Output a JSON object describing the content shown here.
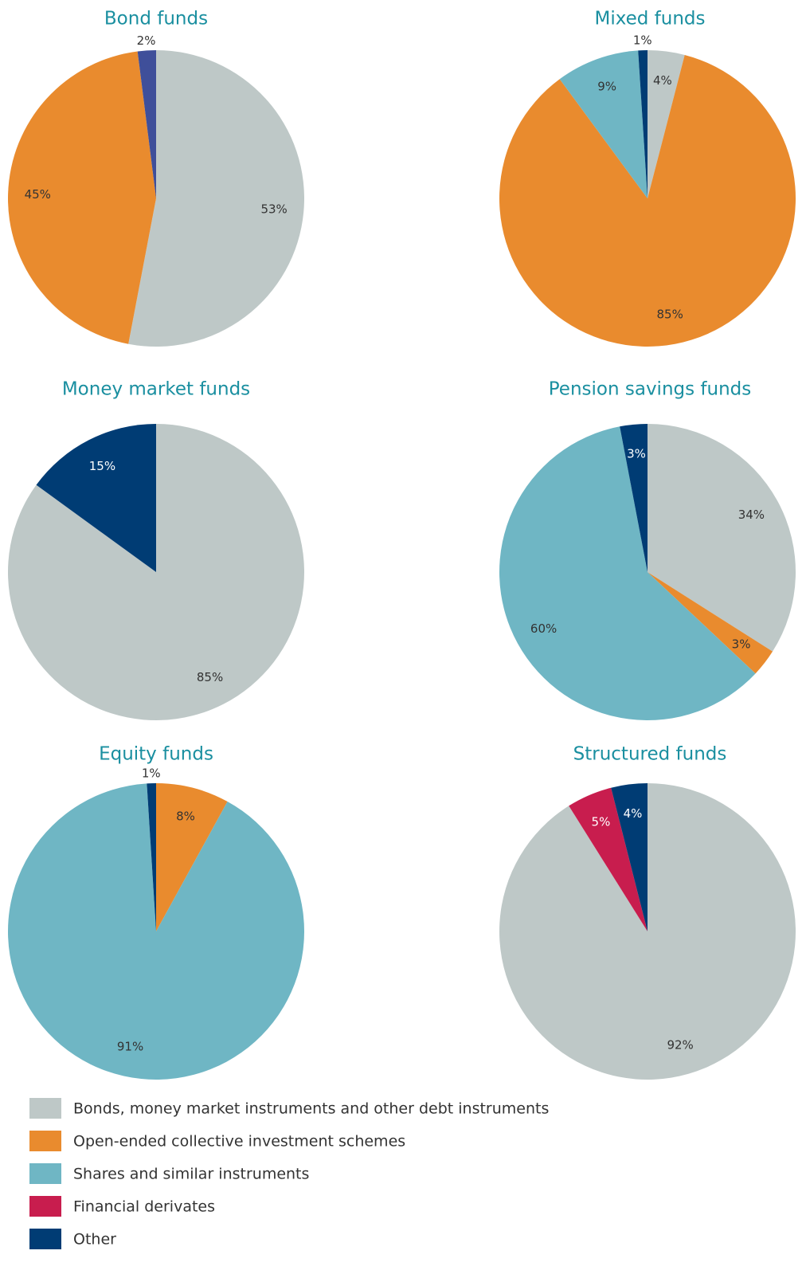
{
  "chart_data": [
    {
      "type": "pie",
      "title": "Bond funds",
      "categories": [
        "Bonds, money market instruments and other debt instruments",
        "Open-ended collective investment schemes",
        "Other"
      ],
      "values": [
        53,
        45,
        2
      ],
      "value_labels": [
        "53%",
        "45%",
        "2%"
      ],
      "colors": [
        "#bec8c7",
        "#e98b2e",
        "#3f4f9a"
      ]
    },
    {
      "type": "pie",
      "title": "Mixed funds",
      "categories": [
        "Bonds, money market instruments and other debt instruments",
        "Open-ended collective investment schemes",
        "Shares and similar instruments",
        "Other"
      ],
      "values": [
        4,
        85,
        9,
        1
      ],
      "value_labels": [
        "4%",
        "85%",
        "9%",
        "1%"
      ],
      "colors": [
        "#bec8c7",
        "#e98b2e",
        "#6fb6c4",
        "#003c74"
      ]
    },
    {
      "type": "pie",
      "title": "Money market funds",
      "categories": [
        "Bonds, money market instruments and other debt instruments",
        "Other"
      ],
      "values": [
        85,
        15
      ],
      "value_labels": [
        "85%",
        "15%"
      ],
      "colors": [
        "#bec8c7",
        "#003c74"
      ]
    },
    {
      "type": "pie",
      "title": "Pension savings funds",
      "categories": [
        "Bonds, money market instruments and other debt instruments",
        "Open-ended collective investment schemes",
        "Shares and similar instruments",
        "Other"
      ],
      "values": [
        34,
        3,
        60,
        3
      ],
      "value_labels": [
        "34%",
        "3%",
        "60%",
        "3%"
      ],
      "colors": [
        "#bec8c7",
        "#e98b2e",
        "#6fb6c4",
        "#003c74"
      ]
    },
    {
      "type": "pie",
      "title": "Equity funds",
      "categories": [
        "Open-ended collective investment schemes",
        "Shares and similar instruments",
        "Other"
      ],
      "values": [
        8,
        91,
        1
      ],
      "value_labels": [
        "8%",
        "91%",
        "1%"
      ],
      "colors": [
        "#e98b2e",
        "#6fb6c4",
        "#003c74"
      ]
    },
    {
      "type": "pie",
      "title": "Structured funds",
      "categories": [
        "Bonds, money market instruments and other debt instruments",
        "Financial derivates",
        "Other"
      ],
      "values": [
        92,
        5,
        4
      ],
      "value_labels": [
        "92%",
        "5%",
        "4%"
      ],
      "colors": [
        "#bec8c7",
        "#c81d4e",
        "#003c74"
      ]
    }
  ],
  "legend": {
    "items": [
      {
        "name": "Bonds, money market instruments and other debt instruments",
        "color": "#bec8c7"
      },
      {
        "name": "Open-ended collective investment schemes",
        "color": "#e98b2e"
      },
      {
        "name": "Shares and similar instruments",
        "color": "#6fb6c4"
      },
      {
        "name": "Financial derivates",
        "color": "#c81d4e"
      },
      {
        "name": "Other",
        "color": "#003c74"
      }
    ]
  }
}
